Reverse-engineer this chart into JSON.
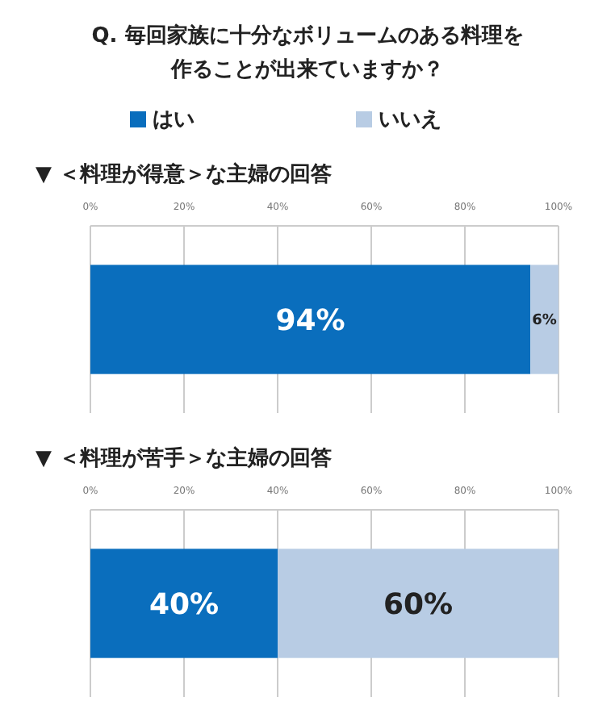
{
  "chart_data": [
    {
      "type": "bar",
      "title": "Q. 毎回家族に十分なボリュームのある料理を作ることが出来ていますか？",
      "subtitle": "▼ ＜料理が得意＞な主婦の回答",
      "orientation": "horizontal",
      "stacked": true,
      "categories": [
        null
      ],
      "legend": "top",
      "grid": "x",
      "xlim": [
        0,
        100
      ],
      "xticks": [
        {
          "value": 0,
          "label": "0%"
        },
        {
          "value": 20,
          "label": "20%"
        },
        {
          "value": 40,
          "label": "40%"
        },
        {
          "value": 60,
          "label": "60%"
        },
        {
          "value": 80,
          "label": "80%"
        },
        {
          "value": 100,
          "label": "100%"
        }
      ],
      "series": [
        {
          "name": "はい",
          "color": "#0a6ebd",
          "values": [
            94
          ],
          "value_labels": [
            "94%"
          ]
        },
        {
          "name": "いいえ",
          "color": "#b8cce4",
          "values": [
            6
          ],
          "value_labels": [
            "6%"
          ]
        }
      ]
    },
    {
      "type": "bar",
      "subtitle": "▼ ＜料理が苦手＞な主婦の回答",
      "orientation": "horizontal",
      "stacked": true,
      "categories": [
        null
      ],
      "grid": "x",
      "xlim": [
        0,
        100
      ],
      "xticks": [
        {
          "value": 0,
          "label": "0%"
        },
        {
          "value": 20,
          "label": "20%"
        },
        {
          "value": 40,
          "label": "40%"
        },
        {
          "value": 60,
          "label": "60%"
        },
        {
          "value": 80,
          "label": "80%"
        },
        {
          "value": 100,
          "label": "100%"
        }
      ],
      "series": [
        {
          "color": "#0a6ebd",
          "values": [
            40
          ],
          "value_labels": [
            "40%"
          ]
        },
        {
          "color": "#b8cce4",
          "values": [
            60
          ],
          "value_labels": [
            "60%"
          ]
        }
      ]
    }
  ]
}
